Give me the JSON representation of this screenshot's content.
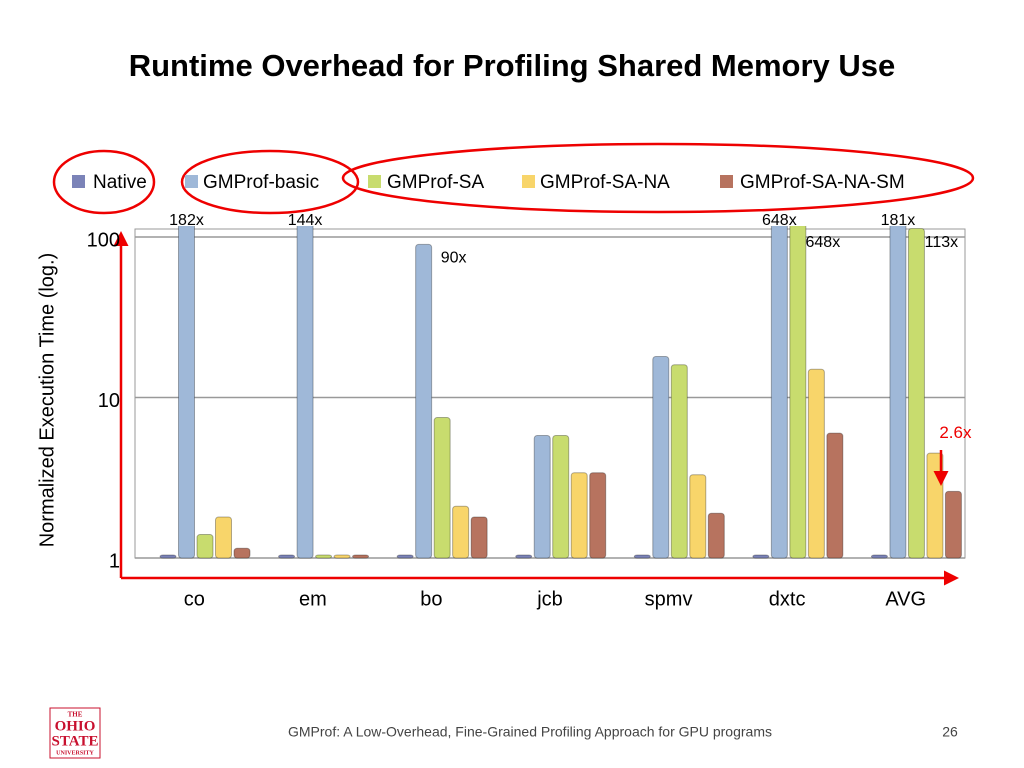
{
  "title": "Runtime Overhead for Profiling Shared Memory Use",
  "chart_data": {
    "type": "bar",
    "log": true,
    "ylabel": "Normalized Execution Time (log.)",
    "categories": [
      "co",
      "em",
      "bo",
      "jcb",
      "spmv",
      "dxtc",
      "AVG"
    ],
    "ylim": [
      1,
      100
    ],
    "yticks": [
      1,
      10,
      100
    ],
    "grid": true,
    "legend": "top",
    "series": [
      {
        "name": "Native",
        "color": "#7b83b8",
        "values": [
          1,
          1,
          1,
          1,
          1,
          1,
          1
        ]
      },
      {
        "name": "GMProf-basic",
        "color": "#9fb8d8",
        "values": [
          182,
          144,
          90,
          5.8,
          18,
          648,
          181
        ],
        "value_labels": [
          "182x",
          "144x",
          "90x",
          null,
          null,
          "648x",
          "181x"
        ]
      },
      {
        "name": "GMProf-SA",
        "color": "#c8dc6e",
        "values": [
          1.4,
          1.02,
          7.5,
          5.8,
          16,
          648,
          113
        ],
        "value_labels": [
          null,
          null,
          null,
          null,
          null,
          "648x",
          "113x"
        ]
      },
      {
        "name": "GMProf-SA-NA",
        "color": "#f8d56a",
        "values": [
          1.8,
          1.01,
          2.1,
          3.4,
          3.3,
          15,
          4.5
        ]
      },
      {
        "name": "GMProf-SA-NA-SM",
        "color": "#b7735f",
        "values": [
          1.15,
          1.01,
          1.8,
          3.4,
          1.9,
          6,
          2.6
        ],
        "value_labels": [
          null,
          null,
          null,
          null,
          null,
          null,
          "2.6x"
        ]
      }
    ]
  },
  "footer": {
    "text": "GMProf: A Low-Overhead, Fine-Grained Profiling Approach for GPU programs",
    "page": "26",
    "logo": [
      "THE",
      "OHIO",
      "STATE",
      "UNIVERSITY"
    ]
  }
}
